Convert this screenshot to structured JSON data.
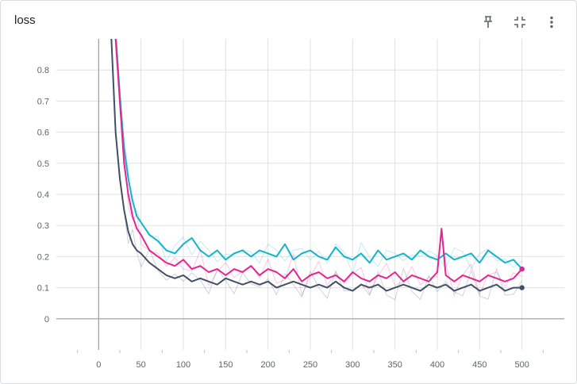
{
  "card": {
    "title": "loss"
  },
  "toolbar": {
    "pin_icon": "pin-icon",
    "collapse_icon": "fit-screen-icon",
    "more_icon": "more-vert-icon"
  },
  "chart_data": {
    "type": "line",
    "title": "loss",
    "xlabel": "",
    "ylabel": "",
    "xlim": [
      -50,
      550
    ],
    "ylim": [
      -0.1,
      0.9
    ],
    "x_ticks": [
      0,
      50,
      100,
      150,
      200,
      250,
      300,
      350,
      400,
      450,
      500
    ],
    "y_ticks": [
      0,
      0.1,
      0.2,
      0.3,
      0.4,
      0.5,
      0.6,
      0.7,
      0.8
    ],
    "grid": true,
    "legend": "none",
    "series": [
      {
        "color": "#12b5cb",
        "x": [
          15,
          20,
          25,
          30,
          35,
          40,
          45,
          50,
          60,
          70,
          80,
          90,
          100,
          110,
          120,
          130,
          140,
          150,
          160,
          170,
          180,
          190,
          200,
          210,
          220,
          230,
          240,
          250,
          260,
          270,
          280,
          290,
          300,
          310,
          320,
          330,
          340,
          350,
          360,
          370,
          380,
          390,
          400,
          410,
          420,
          430,
          440,
          450,
          460,
          470,
          480,
          490,
          500
        ],
        "y": [
          1.1,
          0.92,
          0.72,
          0.55,
          0.45,
          0.38,
          0.33,
          0.31,
          0.27,
          0.25,
          0.22,
          0.21,
          0.24,
          0.26,
          0.22,
          0.2,
          0.22,
          0.19,
          0.21,
          0.22,
          0.2,
          0.22,
          0.21,
          0.2,
          0.24,
          0.19,
          0.21,
          0.22,
          0.2,
          0.19,
          0.23,
          0.2,
          0.19,
          0.21,
          0.18,
          0.22,
          0.19,
          0.2,
          0.21,
          0.19,
          0.22,
          0.2,
          0.19,
          0.21,
          0.19,
          0.2,
          0.21,
          0.18,
          0.22,
          0.2,
          0.18,
          0.19,
          0.16
        ]
      },
      {
        "color": "#e52592",
        "x": [
          15,
          20,
          25,
          30,
          35,
          40,
          45,
          50,
          60,
          70,
          80,
          90,
          100,
          110,
          120,
          130,
          140,
          150,
          160,
          170,
          180,
          190,
          200,
          210,
          220,
          230,
          240,
          250,
          260,
          270,
          280,
          290,
          300,
          310,
          320,
          330,
          340,
          350,
          360,
          370,
          380,
          390,
          400,
          405,
          410,
          420,
          430,
          440,
          450,
          460,
          470,
          480,
          490,
          500
        ],
        "y": [
          1.1,
          0.9,
          0.7,
          0.5,
          0.4,
          0.33,
          0.29,
          0.27,
          0.22,
          0.2,
          0.18,
          0.17,
          0.19,
          0.16,
          0.17,
          0.15,
          0.16,
          0.14,
          0.16,
          0.15,
          0.17,
          0.14,
          0.16,
          0.15,
          0.13,
          0.16,
          0.12,
          0.14,
          0.15,
          0.13,
          0.14,
          0.12,
          0.15,
          0.13,
          0.12,
          0.14,
          0.13,
          0.15,
          0.12,
          0.14,
          0.13,
          0.12,
          0.15,
          0.29,
          0.14,
          0.12,
          0.14,
          0.13,
          0.12,
          0.14,
          0.13,
          0.12,
          0.13,
          0.16
        ]
      },
      {
        "color": "#425066",
        "x": [
          15,
          20,
          25,
          30,
          35,
          40,
          45,
          50,
          60,
          70,
          80,
          90,
          100,
          110,
          120,
          130,
          140,
          150,
          160,
          170,
          180,
          190,
          200,
          210,
          220,
          230,
          240,
          250,
          260,
          270,
          280,
          290,
          300,
          310,
          320,
          330,
          340,
          350,
          360,
          370,
          380,
          390,
          400,
          410,
          420,
          430,
          440,
          450,
          460,
          470,
          480,
          490,
          500
        ],
        "y": [
          0.9,
          0.6,
          0.45,
          0.35,
          0.28,
          0.24,
          0.22,
          0.21,
          0.18,
          0.16,
          0.14,
          0.13,
          0.14,
          0.12,
          0.13,
          0.12,
          0.11,
          0.13,
          0.12,
          0.11,
          0.12,
          0.11,
          0.12,
          0.1,
          0.11,
          0.12,
          0.11,
          0.1,
          0.11,
          0.1,
          0.12,
          0.1,
          0.09,
          0.11,
          0.1,
          0.11,
          0.09,
          0.1,
          0.11,
          0.1,
          0.09,
          0.11,
          0.1,
          0.11,
          0.09,
          0.1,
          0.11,
          0.09,
          0.1,
          0.11,
          0.09,
          0.1,
          0.1
        ]
      }
    ]
  }
}
